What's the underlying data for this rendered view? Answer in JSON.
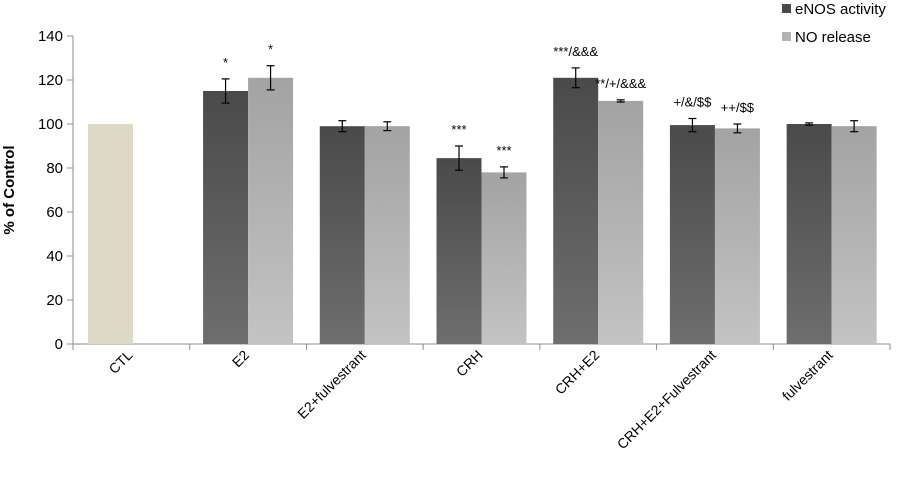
{
  "chart_data": {
    "type": "bar",
    "ylabel": "% of Control",
    "ylim": [
      0,
      140
    ],
    "yticks": [
      0,
      20,
      40,
      60,
      80,
      100,
      120,
      140
    ],
    "grid": false,
    "legend_position": "top-right",
    "categories": [
      "CTL",
      "E2",
      "E2+fulvestrant",
      "CRH",
      "CRH+E2",
      "CRH+E2+Fulvestrant",
      "fulvestrant"
    ],
    "control": {
      "category": "CTL",
      "value": 100,
      "color": "#ddd9c4"
    },
    "series": [
      {
        "name": "eNOS activity",
        "values": [
          null,
          115,
          99,
          84.5,
          121,
          99.5,
          100
        ],
        "errors": [
          null,
          5.5,
          2.5,
          5.5,
          4.5,
          3,
          0.5
        ],
        "annotations": [
          "",
          "*",
          "",
          "***",
          "***/&&&",
          "+/&/$$",
          ""
        ]
      },
      {
        "name": "NO release",
        "values": [
          null,
          121,
          99,
          78,
          110.5,
          98,
          99
        ],
        "errors": [
          null,
          5.5,
          2,
          2.5,
          0.5,
          2,
          2.5
        ],
        "annotations": [
          "",
          "*",
          "",
          "***",
          "**/+/&&&",
          "++/$$",
          ""
        ]
      }
    ],
    "colors": {
      "enos_top": "#4a4a4a",
      "enos_bottom": "#6e6e6e",
      "no_top": "#a3a3a3",
      "no_bottom": "#c3c3c3",
      "axis": "#8c8c8c"
    }
  }
}
